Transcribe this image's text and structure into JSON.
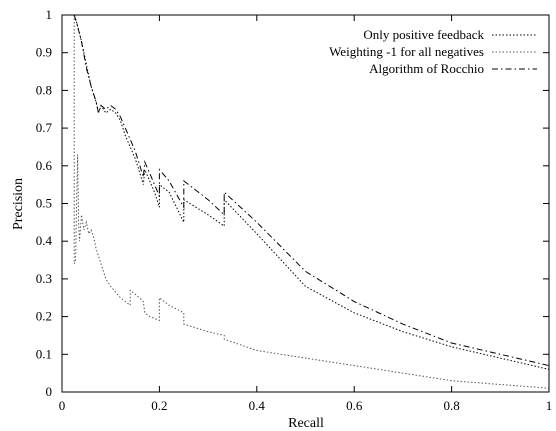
{
  "chart_data": {
    "type": "line",
    "title": "",
    "xlabel": "Recall",
    "ylabel": "Precision",
    "xlim": [
      0,
      1
    ],
    "ylim": [
      0,
      1
    ],
    "x_ticks": [
      "0",
      "0.2",
      "0.4",
      "0.6",
      "0.8",
      "1"
    ],
    "y_ticks": [
      "0",
      "0.1",
      "0.2",
      "0.3",
      "0.4",
      "0.5",
      "0.6",
      "0.7",
      "0.8",
      "0.9",
      "1"
    ],
    "grid": false,
    "legend_position": "top-right",
    "series": [
      {
        "name": "Only positive feedback",
        "line_style": "dotted",
        "color": "#000000",
        "x": [
          0.025,
          0.03,
          0.04,
          0.05,
          0.06,
          0.07,
          0.075,
          0.08,
          0.09,
          0.1,
          0.11,
          0.12,
          0.13,
          0.14,
          0.15,
          0.16,
          0.167,
          0.17,
          0.18,
          0.19,
          0.2,
          0.2,
          0.22,
          0.25,
          0.25,
          0.3,
          0.333,
          0.333,
          0.4,
          0.5,
          0.6,
          0.7,
          0.8,
          0.9,
          1.0
        ],
        "y": [
          1.0,
          0.98,
          0.93,
          0.87,
          0.81,
          0.77,
          0.74,
          0.76,
          0.74,
          0.75,
          0.74,
          0.72,
          0.68,
          0.65,
          0.62,
          0.58,
          0.55,
          0.59,
          0.56,
          0.53,
          0.49,
          0.55,
          0.53,
          0.45,
          0.51,
          0.47,
          0.44,
          0.51,
          0.42,
          0.28,
          0.21,
          0.16,
          0.12,
          0.09,
          0.06
        ]
      },
      {
        "name": "Weighting -1 for all negatives",
        "line_style": "dotted",
        "color": "#555555",
        "x": [
          0.025,
          0.025,
          0.028,
          0.03,
          0.032,
          0.034,
          0.036,
          0.04,
          0.045,
          0.05,
          0.055,
          0.06,
          0.065,
          0.07,
          0.08,
          0.09,
          0.1,
          0.12,
          0.14,
          0.14,
          0.15,
          0.167,
          0.17,
          0.18,
          0.2,
          0.2,
          0.22,
          0.25,
          0.25,
          0.3,
          0.333,
          0.333,
          0.4,
          0.5,
          0.6,
          0.7,
          0.8,
          0.9,
          1.0
        ],
        "y": [
          1.0,
          0.34,
          0.35,
          0.5,
          0.63,
          0.45,
          0.4,
          0.47,
          0.43,
          0.45,
          0.42,
          0.43,
          0.41,
          0.38,
          0.34,
          0.3,
          0.28,
          0.25,
          0.23,
          0.27,
          0.26,
          0.24,
          0.21,
          0.2,
          0.19,
          0.25,
          0.23,
          0.21,
          0.18,
          0.16,
          0.15,
          0.14,
          0.11,
          0.09,
          0.07,
          0.05,
          0.03,
          0.02,
          0.01
        ]
      },
      {
        "name": "Algorithm of Rocchio",
        "line_style": "dashdot",
        "color": "#000000",
        "x": [
          0.025,
          0.03,
          0.04,
          0.05,
          0.06,
          0.07,
          0.075,
          0.08,
          0.09,
          0.1,
          0.11,
          0.12,
          0.13,
          0.14,
          0.15,
          0.16,
          0.167,
          0.17,
          0.18,
          0.19,
          0.2,
          0.2,
          0.22,
          0.25,
          0.25,
          0.3,
          0.333,
          0.333,
          0.4,
          0.5,
          0.6,
          0.7,
          0.8,
          0.9,
          1.0
        ],
        "y": [
          1.0,
          0.98,
          0.93,
          0.86,
          0.81,
          0.77,
          0.74,
          0.76,
          0.75,
          0.76,
          0.75,
          0.73,
          0.7,
          0.67,
          0.64,
          0.6,
          0.57,
          0.61,
          0.58,
          0.55,
          0.52,
          0.59,
          0.56,
          0.49,
          0.56,
          0.51,
          0.47,
          0.53,
          0.45,
          0.32,
          0.24,
          0.18,
          0.13,
          0.1,
          0.07
        ]
      }
    ]
  }
}
